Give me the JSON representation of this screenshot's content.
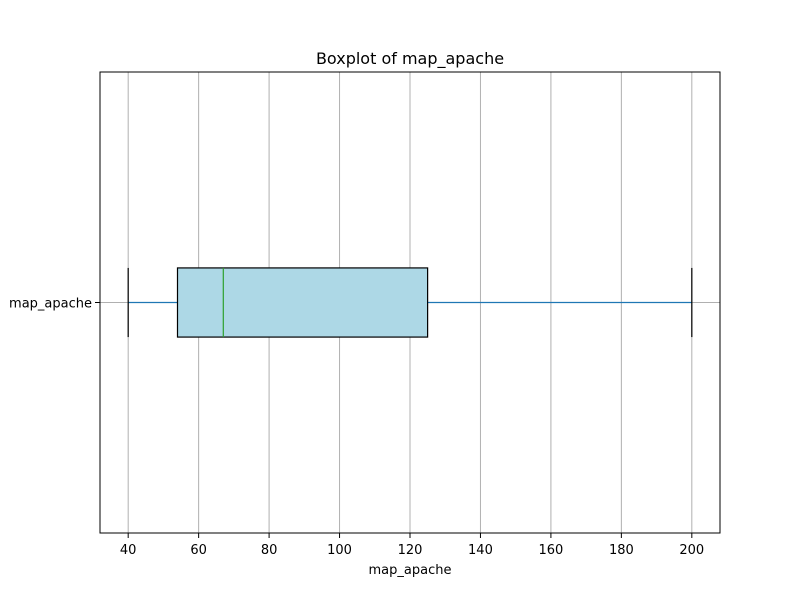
{
  "chart_data": {
    "type": "boxplot",
    "orientation": "horizontal",
    "title": "Boxplot of map_apache",
    "xlabel": "map_apache",
    "ylabel": "",
    "xlim": [
      32,
      208
    ],
    "xticks": [
      40,
      60,
      80,
      100,
      120,
      140,
      160,
      180,
      200
    ],
    "grid": "vertical",
    "categories": [
      "map_apache"
    ],
    "series": [
      {
        "whisker_low": 40,
        "q1": 54,
        "median": 67,
        "q3": 125,
        "whisker_high": 200
      }
    ],
    "colors": {
      "box_fill": "#add8e6",
      "box_edge": "#000000",
      "median": "#2ca02c",
      "whisker": "#1f77b4",
      "caps": "#000000",
      "grid": "#b0b0b0"
    }
  }
}
